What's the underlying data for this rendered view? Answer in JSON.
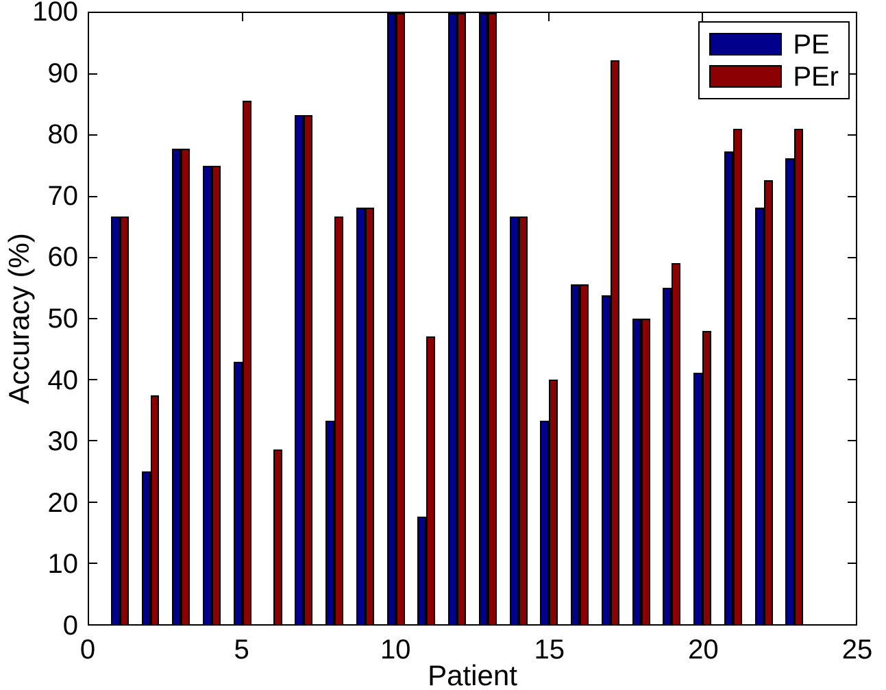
{
  "figure": {
    "background": "#ffffff",
    "axis_color": "#000000"
  },
  "chart_data": {
    "type": "bar",
    "title": "",
    "xlabel": "Patient",
    "ylabel": "Accuracy (%)",
    "xlim": [
      0,
      25
    ],
    "ylim": [
      0,
      100
    ],
    "xticks": [
      0,
      5,
      10,
      15,
      20,
      25
    ],
    "yticks": [
      0,
      10,
      20,
      30,
      40,
      50,
      60,
      70,
      80,
      90,
      100
    ],
    "grid": false,
    "legend_position": "top-right",
    "bar_width_units": 0.29,
    "categories": [
      1,
      2,
      3,
      4,
      5,
      6,
      7,
      8,
      9,
      10,
      11,
      12,
      13,
      14,
      15,
      16,
      17,
      18,
      19,
      20,
      21,
      22,
      23
    ],
    "series": [
      {
        "name": "PE",
        "color": "#00008B",
        "values": [
          66.7,
          25.0,
          77.8,
          75.0,
          42.9,
          0.0,
          83.3,
          33.3,
          68.2,
          100.0,
          17.6,
          100.0,
          100.0,
          66.7,
          33.3,
          55.6,
          53.8,
          50.0,
          55.0,
          41.2,
          77.3,
          68.2,
          76.2
        ]
      },
      {
        "name": "PEr",
        "color": "#8B0000",
        "values": [
          66.7,
          37.5,
          77.8,
          75.0,
          85.7,
          28.6,
          83.3,
          66.7,
          68.2,
          100.0,
          47.1,
          100.0,
          100.0,
          66.7,
          40.0,
          55.6,
          92.3,
          50.0,
          59.1,
          48.0,
          81.0,
          72.7,
          81.0
        ]
      }
    ]
  }
}
